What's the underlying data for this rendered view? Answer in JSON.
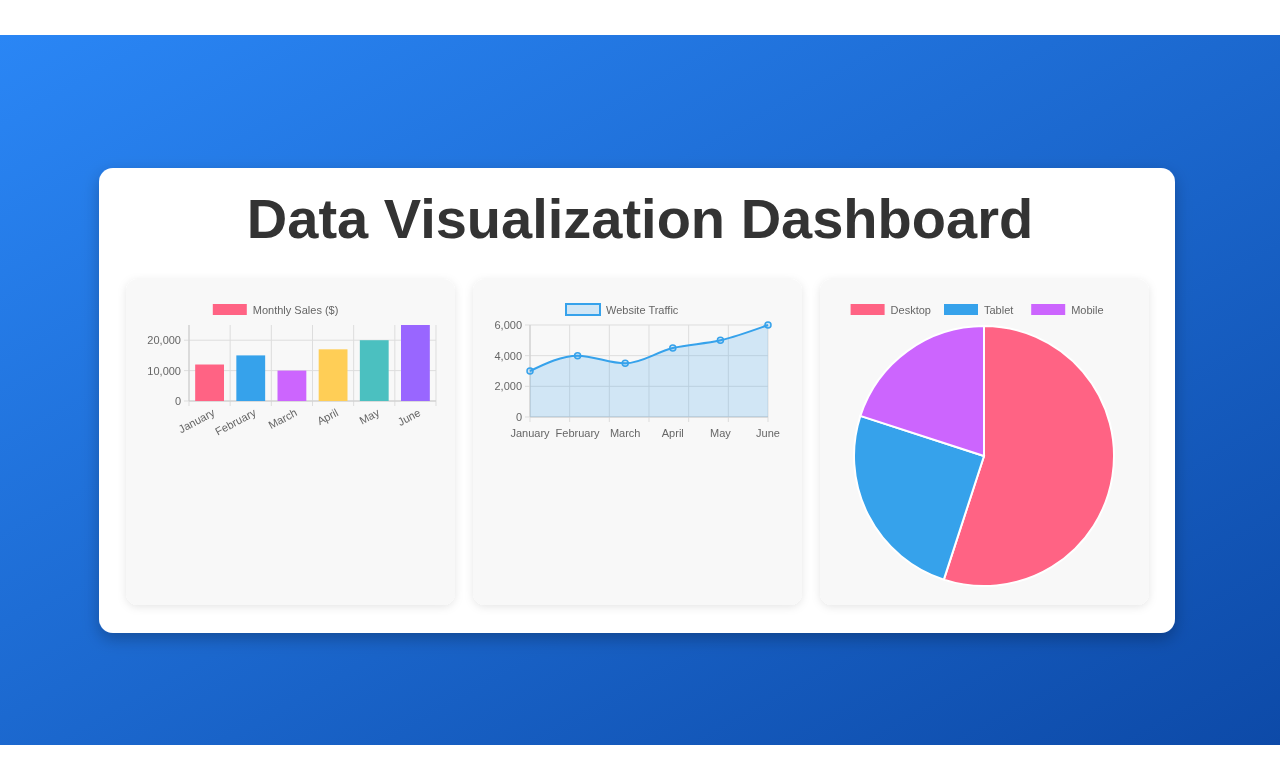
{
  "chart_data": [
    {
      "type": "bar",
      "title": "Data Visualization Dashboard",
      "categories": [
        "January",
        "February",
        "March",
        "April",
        "May",
        "June"
      ],
      "series": [
        {
          "name": "Monthly Sales ($)",
          "colors": [
            "#ff6384",
            "#36a2eb",
            "#cc65fe",
            "#ffce56",
            "#4bc0c0",
            "#9966ff"
          ],
          "values": [
            12000,
            15000,
            10000,
            17000,
            20000,
            25000
          ]
        }
      ],
      "ylim": [
        0,
        25000
      ],
      "yticks": [
        {
          "value": 0,
          "label": "0"
        },
        {
          "value": 10000,
          "label": "10,000"
        },
        {
          "value": 20000,
          "label": "20,000"
        }
      ],
      "grid": true,
      "legend": "top"
    },
    {
      "type": "area",
      "categories": [
        "January",
        "February",
        "March",
        "April",
        "May",
        "June"
      ],
      "series": [
        {
          "name": "Website Traffic",
          "color": "#36a2eb",
          "values": [
            3000,
            4000,
            3500,
            4500,
            5000,
            6000
          ]
        }
      ],
      "ylim": [
        0,
        6000
      ],
      "yticks": [
        {
          "value": 0,
          "label": "0"
        },
        {
          "value": 2000,
          "label": "2,000"
        },
        {
          "value": 4000,
          "label": "4,000"
        },
        {
          "value": 6000,
          "label": "6,000"
        }
      ],
      "grid": true,
      "legend": "top",
      "marker": "circle"
    },
    {
      "type": "pie",
      "categories": [
        "Desktop",
        "Tablet",
        "Mobile"
      ],
      "values": [
        55,
        25,
        20
      ],
      "colors": [
        "#ff6384",
        "#36a2eb",
        "#cc65fe"
      ],
      "legend": "top"
    }
  ]
}
